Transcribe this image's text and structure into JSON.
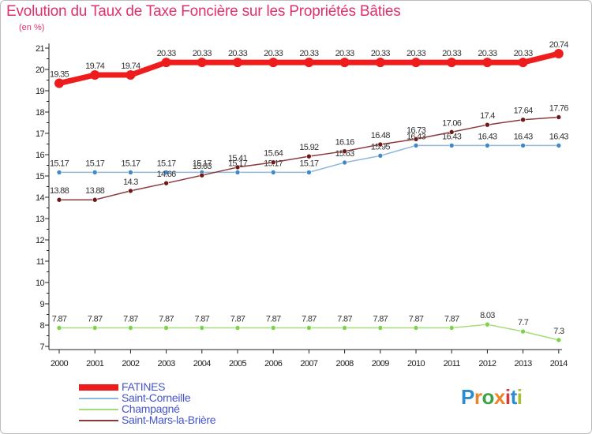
{
  "header": {
    "title": "Evolution du Taux de Taxe Foncière sur les Propriétés Bâties",
    "unit": "(en %)"
  },
  "logo": {
    "letters": [
      "P",
      "r",
      "o",
      "x",
      "i",
      "t",
      "i"
    ],
    "colors": [
      "#2d8ccf",
      "#e9862b",
      "#3aa34a",
      "#e9862b",
      "#d53b3b",
      "#2d8ccf",
      "#a8c030"
    ]
  },
  "chart_data": {
    "type": "line",
    "title": "Evolution du Taux de Taxe Foncière sur les Propriétés Bâties",
    "ylabel": "(en %)",
    "xlabel": "",
    "ylim": [
      7,
      21
    ],
    "y_ticks": [
      7,
      8,
      9,
      10,
      11,
      12,
      13,
      14,
      15,
      16,
      17,
      18,
      19,
      20,
      21
    ],
    "grid": false,
    "legend_position": "bottom-left",
    "categories": [
      "2000",
      "2001",
      "2002",
      "2003",
      "2004",
      "2005",
      "2006",
      "2007",
      "2008",
      "2009",
      "2010",
      "2011",
      "2012",
      "2013",
      "2014"
    ],
    "series": [
      {
        "name": "FATINES",
        "color": "#ee1c1c",
        "marker_color": "#ee1c1c",
        "values": [
          19.35,
          19.74,
          19.74,
          20.33,
          20.33,
          20.33,
          20.33,
          20.33,
          20.33,
          20.33,
          20.33,
          20.33,
          20.33,
          20.33,
          20.74
        ]
      },
      {
        "name": "Saint-Corneille",
        "color": "#8fb8de",
        "marker_color": "#3f88c9",
        "values": [
          15.17,
          15.17,
          15.17,
          15.17,
          15.17,
          15.17,
          15.17,
          15.17,
          15.63,
          15.95,
          16.43,
          16.43,
          16.43,
          16.43,
          16.43
        ]
      },
      {
        "name": "Champagné",
        "color": "#a4dc7a",
        "marker_color": "#7cd34a",
        "values": [
          7.87,
          7.87,
          7.87,
          7.87,
          7.87,
          7.87,
          7.87,
          7.87,
          7.87,
          7.87,
          7.87,
          7.87,
          8.03,
          7.7,
          7.3
        ]
      },
      {
        "name": "Saint-Mars-la-Brière",
        "color": "#8b3a3a",
        "marker_color": "#6b1a1a",
        "values": [
          13.88,
          13.88,
          14.3,
          14.66,
          15.03,
          15.41,
          15.64,
          15.92,
          16.16,
          16.48,
          16.73,
          17.06,
          17.4,
          17.64,
          17.76
        ]
      }
    ]
  }
}
